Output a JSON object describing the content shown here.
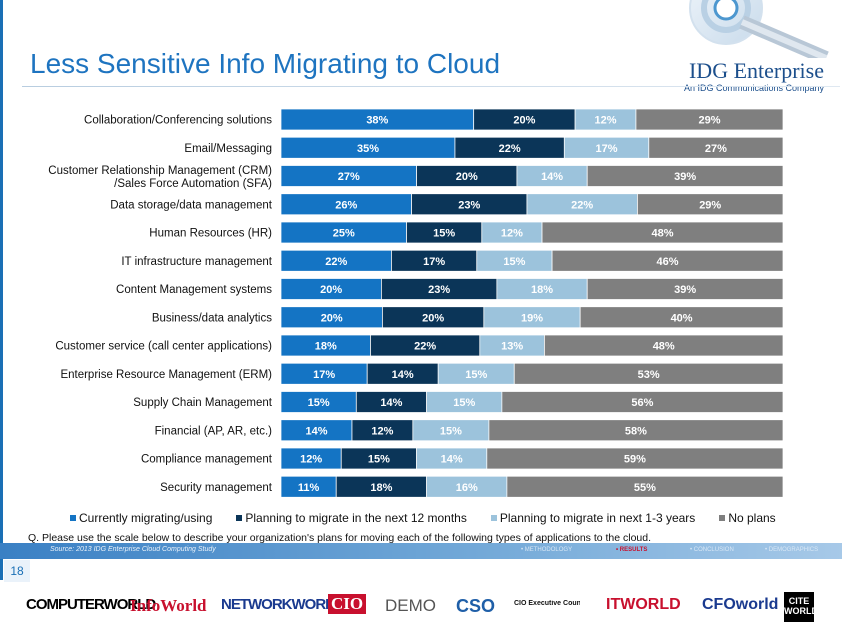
{
  "title": "Less Sensitive Info Migrating to Cloud",
  "brand": {
    "name": "IDG Enterprise",
    "tagline": "An IDG Communications Company"
  },
  "colors": {
    "s0": "#1474c4",
    "s1": "#0b3558",
    "s2": "#9cc3dc",
    "s3": "#7f7f7f",
    "title": "#1e74c0"
  },
  "chart_data": {
    "type": "bar",
    "orientation": "horizontal-stacked-100",
    "categories": [
      "Collaboration/Conferencing solutions",
      "Email/Messaging",
      "Customer Relationship Management (CRM)\n/Sales Force Automation (SFA)",
      "Data storage/data management",
      "Human Resources (HR)",
      "IT infrastructure management",
      "Content Management systems",
      "Business/data analytics",
      "Customer service (call center applications)",
      "Enterprise Resource Management (ERM)",
      "Supply Chain Management",
      "Financial (AP, AR, etc.)",
      "Compliance management",
      "Security management"
    ],
    "series": [
      {
        "name": "Currently migrating/using",
        "values": [
          38,
          35,
          27,
          26,
          25,
          22,
          20,
          20,
          18,
          17,
          15,
          14,
          12,
          11
        ]
      },
      {
        "name": "Planning to migrate in the next 12 months",
        "values": [
          20,
          22,
          20,
          23,
          15,
          17,
          23,
          20,
          22,
          14,
          14,
          12,
          15,
          18
        ]
      },
      {
        "name": "Planning to migrate in next 1-3 years",
        "values": [
          12,
          17,
          14,
          22,
          12,
          15,
          18,
          19,
          13,
          15,
          15,
          15,
          14,
          16
        ]
      },
      {
        "name": "No plans",
        "values": [
          29,
          27,
          39,
          29,
          48,
          46,
          39,
          40,
          48,
          53,
          56,
          58,
          59,
          55
        ]
      }
    ],
    "legend_position": "bottom",
    "grid": false
  },
  "question": "Q. Please use the scale below to describe your organization's plans for moving each of the following types of applications to the cloud.",
  "source": "Source: 2013 IDG Enterprise Cloud Computing Study",
  "nav": [
    "• METHODOLOGY",
    "• RESULTS",
    "• CONCLUSION",
    "• DEMOGRAPHICS"
  ],
  "page_number": "18",
  "logos": [
    "COMPUTERWORLD",
    "InfoWorld",
    "NETWORKWORLD",
    "CIO",
    "DEMO",
    "CSO",
    "CIO Executive Council",
    "ITWORLD",
    "CFOworld",
    "CITE WORLD"
  ]
}
